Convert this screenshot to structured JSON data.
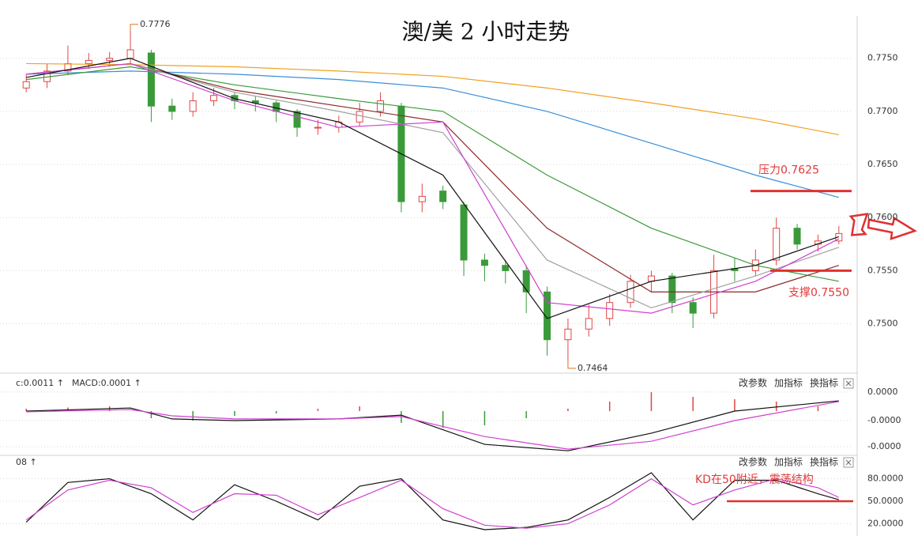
{
  "chart_data": [
    {
      "type": "candlestick",
      "title": "澳/美 2 小时走势",
      "ylim": [
        0.7455,
        0.779
      ],
      "yticks": [
        {
          "value": 0.775,
          "label": "0.7750"
        },
        {
          "value": 0.77,
          "label": "0.7700"
        },
        {
          "value": 0.765,
          "label": "0.7650"
        },
        {
          "value": 0.76,
          "label": "0.7600"
        },
        {
          "value": 0.755,
          "label": "0.7550"
        },
        {
          "value": 0.75,
          "label": "0.7500"
        }
      ],
      "grid": true,
      "up_color": "#e04646",
      "down_color": "#3a9a3a",
      "open": [
        0.7722,
        0.7728,
        0.7738,
        0.7745,
        0.7748,
        0.775,
        0.7755,
        0.7705,
        0.77,
        0.771,
        0.7715,
        0.771,
        0.7708,
        0.77,
        0.7685,
        0.7685,
        0.769,
        0.77,
        0.7705,
        0.7615,
        0.7625,
        0.7612,
        0.756,
        0.7555,
        0.755,
        0.753,
        0.7485,
        0.7495,
        0.7505,
        0.752,
        0.754,
        0.7545,
        0.752,
        0.751,
        0.7552,
        0.755,
        0.756,
        0.759,
        0.7575,
        0.7578
      ],
      "high": [
        0.7735,
        0.7745,
        0.7762,
        0.7755,
        0.7756,
        0.7776,
        0.7758,
        0.7712,
        0.7718,
        0.7722,
        0.7718,
        0.7714,
        0.771,
        0.7702,
        0.7692,
        0.7696,
        0.7708,
        0.7718,
        0.7708,
        0.7632,
        0.763,
        0.7615,
        0.7566,
        0.756,
        0.7555,
        0.7535,
        0.7505,
        0.7518,
        0.7528,
        0.7546,
        0.755,
        0.7548,
        0.7525,
        0.7565,
        0.7562,
        0.757,
        0.76,
        0.7594,
        0.7584,
        0.7592
      ],
      "low": [
        0.7718,
        0.7722,
        0.7734,
        0.774,
        0.7742,
        0.7745,
        0.769,
        0.7692,
        0.7695,
        0.7705,
        0.7702,
        0.77,
        0.769,
        0.7676,
        0.7678,
        0.768,
        0.7686,
        0.7695,
        0.7605,
        0.7605,
        0.7608,
        0.7545,
        0.754,
        0.7538,
        0.751,
        0.747,
        0.7464,
        0.7488,
        0.7498,
        0.7515,
        0.753,
        0.751,
        0.7496,
        0.7505,
        0.754,
        0.7545,
        0.7555,
        0.757,
        0.7568,
        0.7575
      ],
      "close": [
        0.7728,
        0.7738,
        0.7745,
        0.7748,
        0.775,
        0.7758,
        0.7705,
        0.77,
        0.771,
        0.7715,
        0.771,
        0.7708,
        0.77,
        0.7685,
        0.7685,
        0.769,
        0.77,
        0.771,
        0.7615,
        0.762,
        0.7615,
        0.756,
        0.7555,
        0.755,
        0.753,
        0.7485,
        0.7495,
        0.7505,
        0.752,
        0.754,
        0.7545,
        0.752,
        0.751,
        0.755,
        0.755,
        0.756,
        0.759,
        0.7575,
        0.7578,
        0.7585
      ],
      "series": [
        {
          "color": "#f0a020",
          "x": [
            0,
            5,
            10,
            15,
            20,
            25,
            30,
            35,
            39
          ],
          "values": [
            0.7745,
            0.7744,
            0.7742,
            0.7738,
            0.7733,
            0.7722,
            0.7708,
            0.7693,
            0.7678
          ]
        },
        {
          "color": "#3a8fd8",
          "x": [
            0,
            5,
            10,
            15,
            20,
            25,
            30,
            35,
            39
          ],
          "values": [
            0.7735,
            0.7738,
            0.7735,
            0.773,
            0.7722,
            0.77,
            0.767,
            0.764,
            0.7619
          ]
        },
        {
          "color": "#3a9a3a",
          "x": [
            0,
            5,
            10,
            15,
            20,
            25,
            30,
            35,
            39
          ],
          "values": [
            0.773,
            0.7742,
            0.7725,
            0.7712,
            0.77,
            0.764,
            0.759,
            0.7555,
            0.754
          ]
        },
        {
          "color": "#8b2a2a",
          "x": [
            0,
            5,
            10,
            15,
            20,
            25,
            30,
            35,
            39
          ],
          "values": [
            0.7735,
            0.7745,
            0.772,
            0.7705,
            0.769,
            0.759,
            0.753,
            0.753,
            0.7555
          ]
        },
        {
          "color": "#a0a0a0",
          "x": [
            0,
            5,
            10,
            15,
            20,
            25,
            30,
            35,
            39
          ],
          "values": [
            0.7735,
            0.7745,
            0.7718,
            0.77,
            0.768,
            0.756,
            0.7515,
            0.7545,
            0.7572
          ]
        },
        {
          "color": "#d040d0",
          "x": [
            0,
            5,
            10,
            15,
            20,
            25,
            30,
            35,
            39
          ],
          "values": [
            0.7735,
            0.7745,
            0.771,
            0.7685,
            0.769,
            0.752,
            0.751,
            0.754,
            0.758
          ]
        },
        {
          "color": "#111111",
          "x": [
            0,
            5,
            10,
            15,
            20,
            25,
            30,
            35,
            39
          ],
          "values": [
            0.7732,
            0.775,
            0.7712,
            0.769,
            0.764,
            0.7505,
            0.754,
            0.7555,
            0.7582
          ]
        }
      ],
      "high_mark": {
        "index": 5,
        "value": 0.7776
      },
      "low_mark": {
        "index": 26,
        "value": 0.7464
      },
      "annotations": [
        {
          "text": "压力0.7625",
          "value": 0.7625
        },
        {
          "text": "支撑0.7550",
          "value": 0.755
        }
      ]
    },
    {
      "type": "macd",
      "header": [
        {
          "text": "c:0.0011 ↑",
          "color": "#c040c0"
        },
        {
          "text": "MACD:0.0001 ↑",
          "color": "#666666"
        }
      ],
      "toolbar": [
        "改参数",
        "加指标",
        "换指标"
      ],
      "ylim": [
        -1.73e-05,
        1.33e-05
      ],
      "yticks": [
        {
          "value": 8e-06,
          "label": "0.0000"
        },
        {
          "value": -4e-06,
          "label": "-0.0000"
        },
        {
          "value": -1.5e-05,
          "label": "-0.0000"
        }
      ],
      "up_color": "#e04646",
      "down_color": "#3a9a3a",
      "histogram": {
        "x": [
          0,
          2,
          4,
          6,
          8,
          10,
          12,
          14,
          16,
          18,
          20,
          22,
          24,
          26,
          28,
          30,
          32,
          34,
          36,
          38
        ],
        "values": [
          1e-06,
          1.5e-06,
          2e-06,
          -3e-06,
          -4e-06,
          -2e-06,
          -1e-06,
          1e-06,
          2e-06,
          -5e-06,
          -7e-06,
          -6e-06,
          -3e-06,
          1e-06,
          4e-06,
          8e-06,
          6e-06,
          5e-06,
          4e-06,
          2e-06
        ]
      },
      "series": [
        {
          "color": "#111111",
          "x": [
            0,
            5,
            7,
            10,
            15,
            18,
            22,
            26,
            30,
            34,
            39
          ],
          "values": [
            0,
            1.3e-06,
            -3.3e-06,
            -4e-06,
            -3.3e-06,
            -1.7e-06,
            -1.4e-05,
            -1.67e-05,
            -9.3e-06,
            0,
            4.3e-06
          ]
        },
        {
          "color": "#d040d0",
          "x": [
            0,
            5,
            7,
            10,
            15,
            18,
            22,
            26,
            30,
            34,
            39
          ],
          "values": [
            -3e-07,
            6.7e-07,
            -2e-06,
            -3.3e-06,
            -3.3e-06,
            -2.3e-06,
            -1.07e-05,
            -1.6e-05,
            -1.27e-05,
            -4e-06,
            4e-06
          ]
        }
      ]
    },
    {
      "type": "line",
      "header": [
        {
          "text": "08 ↑",
          "color": "#c040c0"
        }
      ],
      "toolbar": [
        "改参数",
        "加指标",
        "换指标"
      ],
      "ylim": [
        12,
        107
      ],
      "yticks": [
        {
          "value": 80,
          "label": "80.0000"
        },
        {
          "value": 50,
          "label": "50.0000"
        },
        {
          "value": 20,
          "label": "20.0000"
        }
      ],
      "series": [
        {
          "color": "#111111",
          "x": [
            0,
            2,
            4,
            6,
            8,
            10,
            12,
            14,
            16,
            18,
            20,
            22,
            24,
            26,
            28,
            30,
            32,
            34,
            36,
            38,
            39
          ],
          "values": [
            22,
            75,
            80,
            60,
            25,
            72,
            50,
            25,
            70,
            80,
            25,
            12,
            15,
            25,
            55,
            88,
            25,
            78,
            78,
            60,
            52
          ]
        },
        {
          "color": "#d040d0",
          "x": [
            0,
            2,
            4,
            6,
            8,
            10,
            12,
            14,
            16,
            18,
            20,
            22,
            24,
            26,
            28,
            30,
            32,
            34,
            36,
            38,
            39
          ],
          "values": [
            25,
            65,
            78,
            68,
            35,
            60,
            58,
            32,
            55,
            78,
            40,
            18,
            14,
            20,
            45,
            80,
            45,
            65,
            80,
            68,
            55
          ]
        }
      ],
      "annotations": [
        {
          "text": "KD在50附近，震荡结构",
          "value": 50
        }
      ]
    }
  ]
}
